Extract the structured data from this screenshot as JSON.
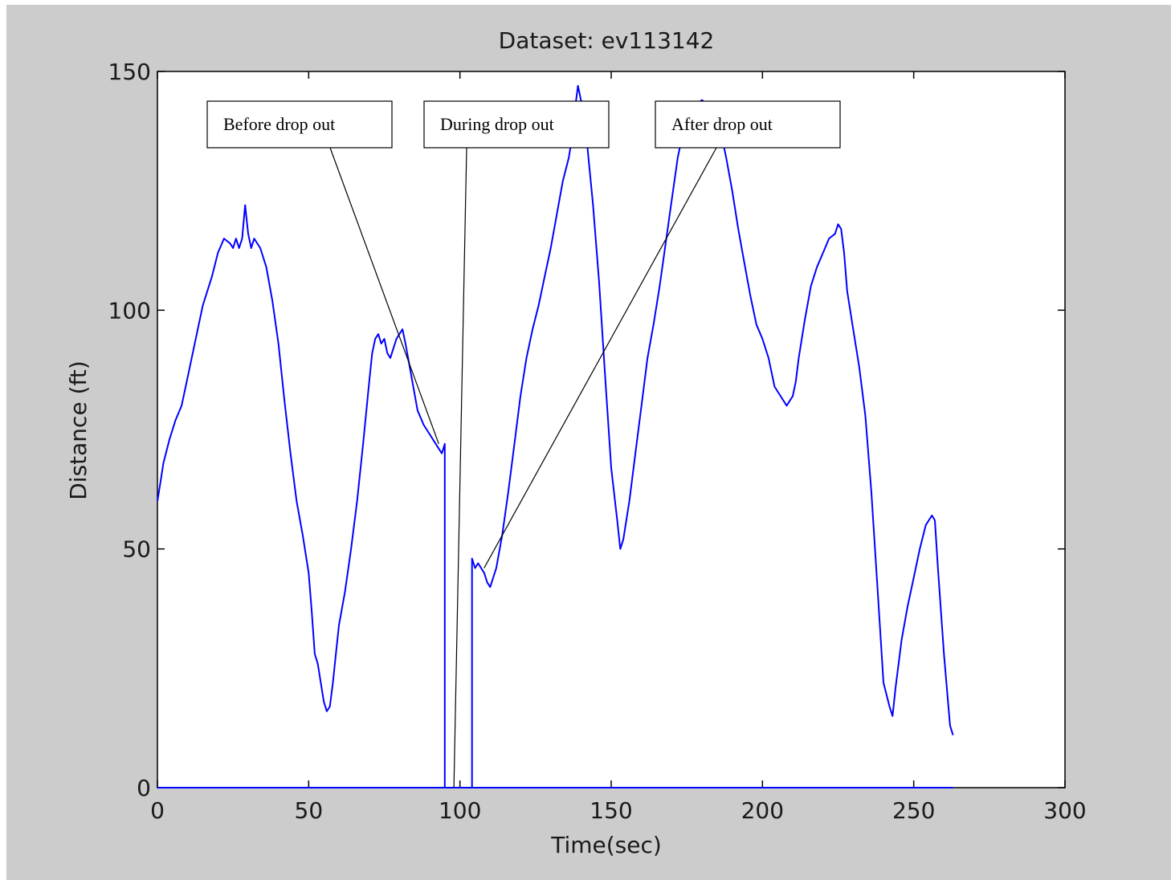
{
  "chart_data": {
    "type": "line",
    "title": "Dataset: ev113142",
    "xlabel": "Time(sec)",
    "ylabel": "Distance (ft)",
    "xlim": [
      0,
      300
    ],
    "ylim": [
      0,
      150
    ],
    "xticks": [
      0,
      50,
      100,
      150,
      200,
      250,
      300
    ],
    "yticks": [
      0,
      50,
      100,
      150
    ],
    "xtick_labels": [
      "0",
      "50",
      "100",
      "150",
      "200",
      "250",
      "300"
    ],
    "ytick_labels": [
      "0",
      "50",
      "100",
      "150"
    ],
    "grid": false,
    "legend": null,
    "line_color": "#0000ff",
    "series": [
      {
        "x": [
          0,
          1,
          2,
          4,
          6,
          8,
          10,
          12,
          15,
          18,
          20,
          22,
          24,
          25,
          26,
          27,
          28,
          29,
          30,
          31,
          32,
          33,
          34,
          36,
          38,
          40,
          42,
          44,
          46,
          48,
          50,
          51,
          52,
          53,
          54,
          55,
          56,
          57,
          58,
          59,
          60,
          62,
          64,
          66,
          68,
          70,
          71,
          72,
          73,
          74,
          75,
          76,
          77,
          78,
          79,
          80,
          81,
          82,
          84,
          86,
          88,
          90,
          92,
          94,
          94.5,
          95,
          95,
          104,
          104,
          104.5,
          105,
          106,
          107,
          108,
          109,
          110,
          112,
          114,
          116,
          118,
          120,
          122,
          124,
          126,
          128,
          130,
          132,
          134,
          136,
          137,
          138,
          139,
          140,
          141,
          142,
          144,
          146,
          148,
          150,
          152,
          153,
          154,
          156,
          158,
          160,
          162,
          164,
          166,
          168,
          170,
          172,
          174,
          176,
          178,
          180,
          182,
          184,
          186,
          188,
          190,
          192,
          194,
          196,
          198,
          200,
          202,
          204,
          206,
          208,
          209,
          210,
          211,
          212,
          214,
          216,
          218,
          220,
          222,
          224,
          225,
          226,
          227,
          228,
          230,
          232,
          234,
          236,
          238,
          240,
          242,
          243,
          244,
          246,
          248,
          250,
          252,
          254,
          256,
          257,
          258,
          260,
          262,
          263
        ],
        "y": [
          60,
          64,
          68,
          73,
          77,
          80,
          86,
          92,
          101,
          107,
          112,
          115,
          114,
          113,
          115,
          113,
          115,
          122,
          116,
          113,
          115,
          114,
          113,
          109,
          102,
          93,
          81,
          70,
          60,
          53,
          45,
          37,
          28,
          26,
          22,
          18,
          16,
          17,
          22,
          28,
          34,
          41,
          50,
          60,
          72,
          85,
          91,
          94,
          95,
          93,
          94,
          91,
          90,
          92,
          94,
          95,
          96,
          93,
          86,
          79,
          76,
          74,
          72,
          70,
          71,
          72,
          0,
          0,
          48,
          47,
          46,
          47,
          46,
          45,
          43,
          42,
          46,
          53,
          62,
          72,
          82,
          90,
          96,
          101,
          107,
          113,
          120,
          127,
          132,
          136,
          142,
          147,
          144,
          140,
          135,
          122,
          106,
          86,
          67,
          56,
          50,
          52,
          60,
          70,
          80,
          90,
          97,
          105,
          114,
          123,
          132,
          138,
          142,
          143,
          144,
          143,
          142,
          138,
          132,
          125,
          117,
          110,
          103,
          97,
          94,
          90,
          84,
          82,
          80,
          81,
          82,
          85,
          90,
          98,
          105,
          109,
          112,
          115,
          116,
          118,
          117,
          112,
          104,
          96,
          88,
          78,
          62,
          42,
          22,
          17,
          15,
          21,
          31,
          38,
          44,
          50,
          55,
          57,
          56,
          46,
          28,
          13,
          11
        ]
      },
      {
        "x": [
          0,
          263
        ],
        "y": [
          0,
          0
        ]
      }
    ],
    "annotations": [
      {
        "text": "Before drop out",
        "target": [
          93,
          72
        ]
      },
      {
        "text": "During drop out",
        "target": [
          98,
          0
        ]
      },
      {
        "text": "After drop out",
        "target": [
          108,
          46
        ]
      }
    ]
  }
}
